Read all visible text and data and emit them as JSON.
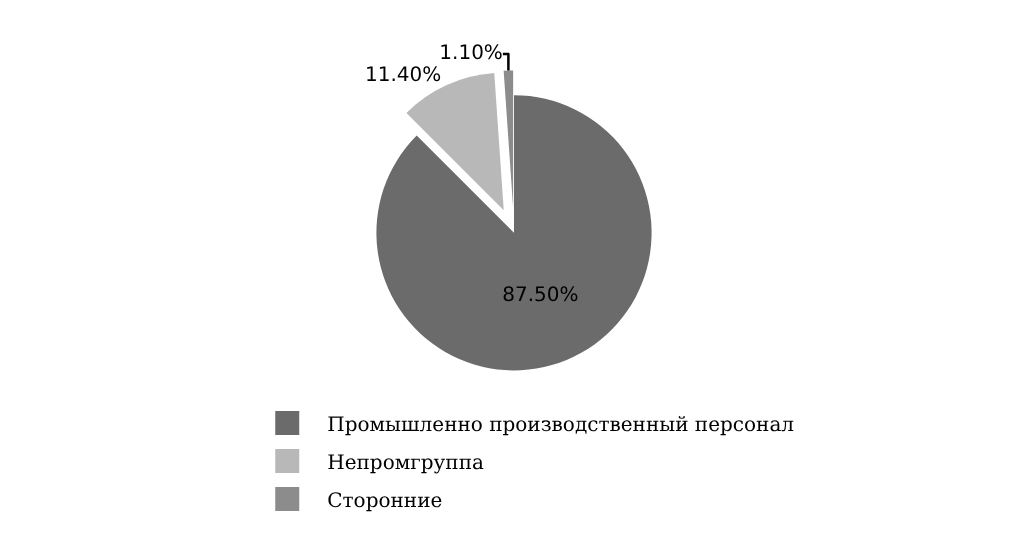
{
  "chart_data": {
    "type": "pie",
    "categories": [
      "Промышленно производственный персонал",
      "Непромгруппа",
      "Сторонние"
    ],
    "values": [
      87.5,
      11.4,
      1.1
    ],
    "value_labels": [
      "87.50%",
      "11.40%",
      "1.10%"
    ],
    "colors": [
      "#6b6b6b",
      "#b8b8b8",
      "#8c8c8c"
    ],
    "legend": "bottom"
  }
}
